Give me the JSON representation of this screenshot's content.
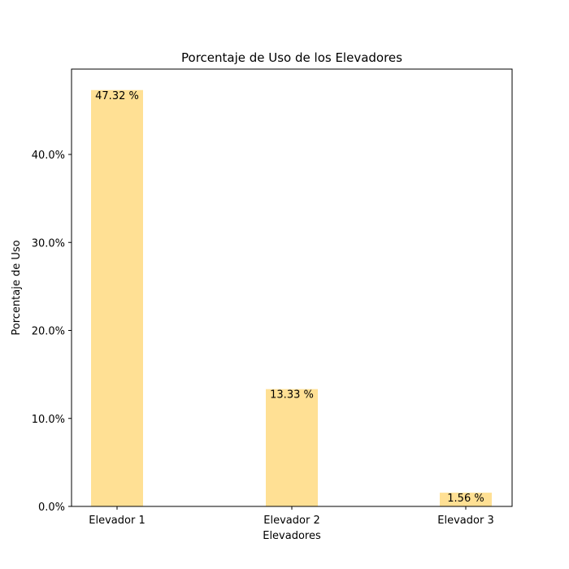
{
  "chart_data": {
    "type": "bar",
    "title": "Porcentaje de Uso de los Elevadores",
    "xlabel": "Elevadores",
    "ylabel": "Porcentaje de Uso",
    "categories": [
      "Elevador 1",
      "Elevador 2",
      "Elevador 3"
    ],
    "values": [
      47.32,
      13.33,
      1.56
    ],
    "value_labels": [
      "47.32 %",
      "13.33 %",
      "1.56 %"
    ],
    "yticks": [
      0,
      10,
      20,
      30,
      40
    ],
    "ytick_labels": [
      "0.0%",
      "10.0%",
      "20.0%",
      "30.0%",
      "40.0%"
    ],
    "ylim": [
      0,
      49.7
    ],
    "grid": false,
    "bar_color": "#ffe094"
  }
}
